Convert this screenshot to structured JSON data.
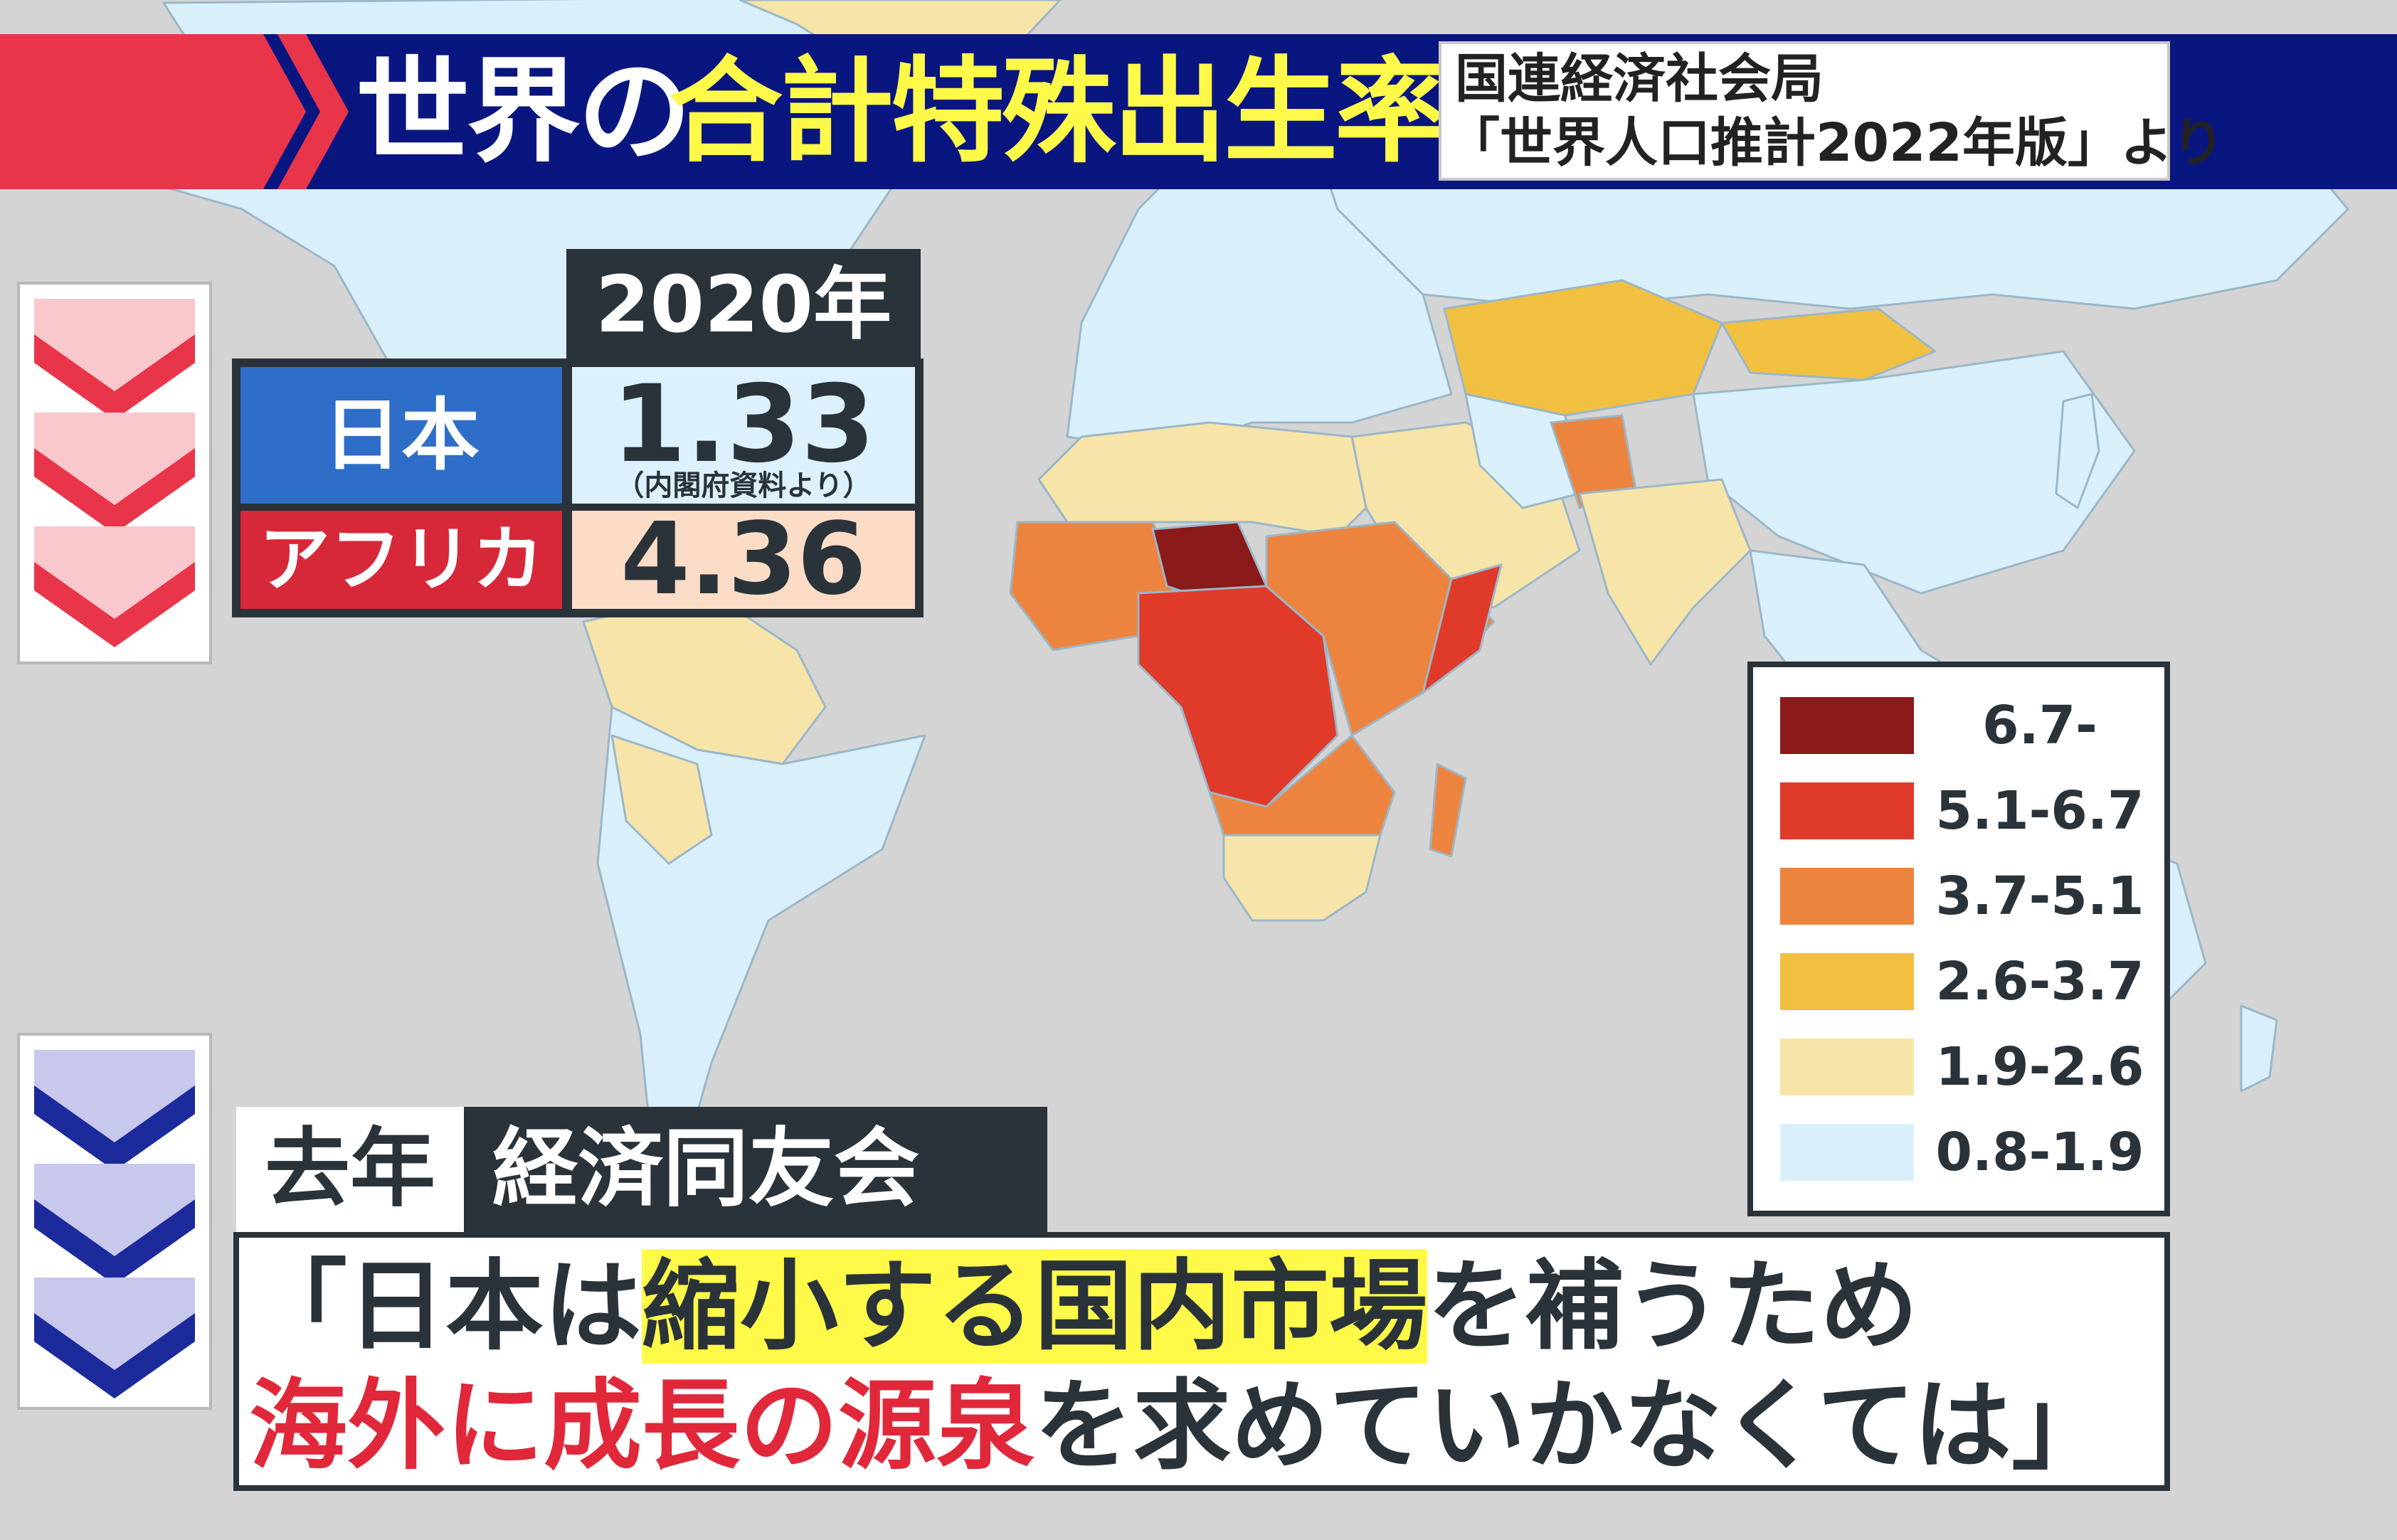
{
  "header": {
    "title_white": "世界の",
    "title_yellow": "合計特殊出生率",
    "source_line1": "国連経済社会局",
    "source_line2": "「世界人口推計2022年版」より"
  },
  "stats": {
    "year": "2020年",
    "japan_label": "日本",
    "japan_value": "1.33",
    "japan_note": "（内閣府資料より）",
    "africa_label": "アフリカ",
    "africa_value": "4.36"
  },
  "legend": {
    "items": [
      {
        "label": "6.7-",
        "color": "#8b1a1a"
      },
      {
        "label": "5.1-6.7",
        "color": "#e03a2a"
      },
      {
        "label": "3.7-5.1",
        "color": "#ec8440"
      },
      {
        "label": "2.6-3.7",
        "color": "#f2c040"
      },
      {
        "label": "1.9-2.6",
        "color": "#f7e4a8"
      },
      {
        "label": "0.8-1.9",
        "color": "#d9f0fb"
      }
    ]
  },
  "caption": {
    "tag_year": "去年",
    "tag_org": "経済同友会",
    "quote_open": "「日本は",
    "quote_highlight": "縮小する国内市場",
    "quote_line1_end": "を補うため",
    "quote_red": "海外に成長の源泉",
    "quote_line2_end": "を求めていかなくては」"
  },
  "colors": {
    "banner_navy": "#0a1680",
    "banner_red": "#e8354a",
    "title_yellow": "#fff94a",
    "ocean": "#d4d4d4",
    "land_low": "#d9f0fb"
  }
}
